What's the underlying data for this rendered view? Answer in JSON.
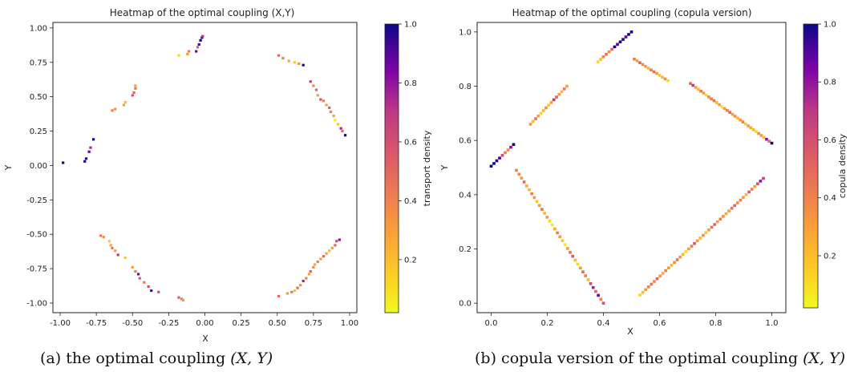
{
  "captions": {
    "a": {
      "label": "(a)",
      "text": "the optimal coupling",
      "math": "(X, Y)"
    },
    "b": {
      "label": "(b)",
      "text": "copula version of the optimal coupling",
      "math": "(X, Y)"
    }
  },
  "colormap": "plasma (reversed)",
  "chart_data": [
    {
      "type": "heatmap",
      "title": "Heatmap of the optimal coupling (X,Y)",
      "xlabel": "X",
      "ylabel": "Y",
      "xlim": [
        -1.05,
        1.05
      ],
      "ylim": [
        -1.07,
        1.04
      ],
      "xticks": [
        -1.0,
        -0.75,
        -0.5,
        -0.25,
        0.0,
        0.25,
        0.5,
        0.75,
        1.0
      ],
      "yticks": [
        -1.0,
        -0.75,
        -0.5,
        -0.25,
        0.0,
        0.25,
        0.5,
        0.75,
        1.0
      ],
      "colorbar": {
        "label": "transport density",
        "ticks": [
          0.2,
          0.4,
          0.6,
          0.8,
          1.0
        ],
        "range": [
          0.02,
          1.0
        ]
      },
      "cell_size": 0.018,
      "points": [
        [
          -0.98,
          0.02,
          1.0
        ],
        [
          -0.83,
          0.03,
          1.0
        ],
        [
          -0.82,
          0.05,
          0.95
        ],
        [
          -0.8,
          0.1,
          0.9
        ],
        [
          -0.79,
          0.13,
          0.75
        ],
        [
          -0.77,
          0.19,
          1.0
        ],
        [
          -0.64,
          0.4,
          0.4
        ],
        [
          -0.62,
          0.41,
          0.35
        ],
        [
          -0.56,
          0.44,
          0.3
        ],
        [
          -0.55,
          0.46,
          0.2
        ],
        [
          -0.5,
          0.51,
          0.6
        ],
        [
          -0.49,
          0.53,
          0.5
        ],
        [
          -0.48,
          0.56,
          0.45
        ],
        [
          -0.48,
          0.58,
          0.3
        ],
        [
          -0.18,
          0.8,
          0.1
        ],
        [
          -0.12,
          0.81,
          0.3
        ],
        [
          -0.11,
          0.83,
          0.4
        ],
        [
          -0.06,
          0.83,
          0.85
        ],
        [
          -0.05,
          0.86,
          0.55
        ],
        [
          -0.04,
          0.88,
          0.9
        ],
        [
          -0.03,
          0.91,
          1.0
        ],
        [
          -0.02,
          0.93,
          0.95
        ],
        [
          -0.015,
          0.94,
          0.7
        ],
        [
          0.51,
          0.8,
          0.5
        ],
        [
          0.54,
          0.78,
          0.4
        ],
        [
          0.58,
          0.76,
          0.3
        ],
        [
          0.62,
          0.75,
          0.15
        ],
        [
          0.65,
          0.74,
          0.35
        ],
        [
          0.68,
          0.73,
          1.0
        ],
        [
          0.73,
          0.61,
          0.7
        ],
        [
          0.75,
          0.58,
          0.35
        ],
        [
          0.77,
          0.55,
          0.5
        ],
        [
          0.78,
          0.51,
          0.3
        ],
        [
          0.8,
          0.48,
          0.6
        ],
        [
          0.82,
          0.47,
          0.4
        ],
        [
          0.84,
          0.44,
          0.3
        ],
        [
          0.86,
          0.42,
          0.55
        ],
        [
          0.87,
          0.39,
          0.4
        ],
        [
          0.89,
          0.36,
          0.3
        ],
        [
          0.9,
          0.33,
          0.05
        ],
        [
          0.92,
          0.3,
          0.2
        ],
        [
          0.94,
          0.27,
          0.75
        ],
        [
          0.95,
          0.25,
          0.5
        ],
        [
          0.97,
          0.22,
          1.0
        ],
        [
          -0.72,
          -0.51,
          0.4
        ],
        [
          -0.7,
          -0.52,
          0.35
        ],
        [
          -0.66,
          -0.55,
          0.15
        ],
        [
          -0.65,
          -0.58,
          0.25
        ],
        [
          -0.64,
          -0.6,
          0.45
        ],
        [
          -0.62,
          -0.62,
          0.3
        ],
        [
          -0.6,
          -0.65,
          0.7
        ],
        [
          -0.55,
          -0.67,
          0.15
        ],
        [
          -0.5,
          -0.74,
          0.3
        ],
        [
          -0.48,
          -0.77,
          0.4
        ],
        [
          -0.46,
          -0.79,
          0.85
        ],
        [
          -0.45,
          -0.82,
          0.55
        ],
        [
          -0.42,
          -0.85,
          0.4
        ],
        [
          -0.39,
          -0.88,
          0.6
        ],
        [
          -0.37,
          -0.91,
          0.9
        ],
        [
          -0.32,
          -0.92,
          0.6
        ],
        [
          -0.18,
          -0.96,
          0.55
        ],
        [
          -0.16,
          -0.97,
          0.4
        ],
        [
          -0.15,
          -0.98,
          0.3
        ],
        [
          0.51,
          -0.95,
          0.5
        ],
        [
          0.57,
          -0.93,
          0.3
        ],
        [
          0.6,
          -0.92,
          0.45
        ],
        [
          0.62,
          -0.91,
          0.2
        ],
        [
          0.64,
          -0.89,
          0.5
        ],
        [
          0.66,
          -0.87,
          0.35
        ],
        [
          0.68,
          -0.84,
          0.75
        ],
        [
          0.7,
          -0.82,
          0.4
        ],
        [
          0.72,
          -0.79,
          0.3
        ],
        [
          0.73,
          -0.77,
          0.5
        ],
        [
          0.75,
          -0.74,
          0.35
        ],
        [
          0.76,
          -0.72,
          0.25
        ],
        [
          0.78,
          -0.7,
          0.4
        ],
        [
          0.8,
          -0.68,
          0.3
        ],
        [
          0.82,
          -0.66,
          0.5
        ],
        [
          0.84,
          -0.64,
          0.3
        ],
        [
          0.86,
          -0.62,
          0.2
        ],
        [
          0.88,
          -0.6,
          0.3
        ],
        [
          0.9,
          -0.58,
          0.5
        ],
        [
          0.91,
          -0.55,
          0.6
        ],
        [
          0.93,
          -0.54,
          0.8
        ]
      ]
    },
    {
      "type": "heatmap",
      "title": "Heatmap of the optimal coupling (copula version)",
      "xlabel": "X",
      "ylabel": "Y",
      "xlim": [
        -0.05,
        1.05
      ],
      "ylim": [
        -0.035,
        1.035
      ],
      "xticks": [
        0.0,
        0.2,
        0.4,
        0.6,
        0.8,
        1.0
      ],
      "yticks": [
        0.0,
        0.2,
        0.4,
        0.6,
        0.8,
        1.0
      ],
      "colorbar": {
        "label": "copula density",
        "ticks": [
          0.2,
          0.4,
          0.6,
          0.8,
          1.0
        ],
        "range": [
          0.02,
          1.0
        ]
      },
      "cell_size": 0.0105,
      "segments": [
        {
          "from": [
            0.0,
            0.505
          ],
          "to": [
            0.08,
            0.585
          ],
          "n": 9,
          "values": [
            1.0,
            1.0,
            0.95,
            0.9,
            0.6,
            0.4,
            0.35,
            0.8,
            1.0
          ]
        },
        {
          "from": [
            0.09,
            0.49
          ],
          "to": [
            0.4,
            0.0
          ],
          "n": 35,
          "values": [
            0.4,
            0.35,
            0.3,
            0.5,
            0.25,
            0.2,
            0.4,
            0.3,
            0.15,
            0.3,
            0.45,
            0.2,
            0.3,
            0.1,
            0.05,
            0.25,
            0.4,
            0.3,
            0.15,
            0.05,
            0.3,
            0.45,
            0.55,
            0.2,
            0.1,
            0.3,
            0.5,
            0.4,
            0.2,
            0.6,
            0.75,
            0.5,
            0.85,
            0.4,
            0.6
          ]
        },
        {
          "from": [
            0.14,
            0.66
          ],
          "to": [
            0.27,
            0.8
          ],
          "n": 15,
          "values": [
            0.3,
            0.2,
            0.45,
            0.3,
            0.1,
            0.2,
            0.35,
            0.15,
            0.3,
            0.7,
            0.5,
            0.3,
            0.2,
            0.4,
            0.3
          ]
        },
        {
          "from": [
            0.38,
            0.89
          ],
          "to": [
            0.5,
            1.0
          ],
          "n": 13,
          "values": [
            0.1,
            0.2,
            0.4,
            0.45,
            0.35,
            0.5,
            1.0,
            0.9,
            1.0,
            0.95,
            0.9,
            1.0,
            1.0
          ]
        },
        {
          "from": [
            0.51,
            0.9
          ],
          "to": [
            0.63,
            0.82
          ],
          "n": 13,
          "values": [
            0.4,
            0.3,
            0.5,
            0.35,
            0.3,
            0.2,
            0.4,
            0.45,
            0.3,
            0.15,
            0.2,
            0.35,
            0.1
          ]
        },
        {
          "from": [
            0.71,
            0.81
          ],
          "to": [
            1.0,
            0.59
          ],
          "n": 32,
          "values": [
            0.5,
            0.7,
            0.3,
            0.2,
            0.4,
            0.3,
            0.1,
            0.35,
            0.4,
            0.45,
            0.2,
            0.3,
            0.05,
            0.3,
            0.4,
            0.5,
            0.3,
            0.35,
            0.2,
            0.3,
            0.4,
            0.15,
            0.3,
            0.25,
            0.2,
            0.1,
            0.35,
            0.3,
            0.2,
            0.8,
            0.5,
            1.0
          ]
        },
        {
          "from": [
            0.53,
            0.03
          ],
          "to": [
            0.97,
            0.46
          ],
          "n": 44,
          "values": [
            0.1,
            0.2,
            0.3,
            0.4,
            0.45,
            0.35,
            0.5,
            0.3,
            0.25,
            0.4,
            0.3,
            0.2,
            0.35,
            0.45,
            0.3,
            0.2,
            0.1,
            0.3,
            0.4,
            0.55,
            0.3,
            0.2,
            0.35,
            0.15,
            0.3,
            0.45,
            0.5,
            0.3,
            0.4,
            0.35,
            0.25,
            0.3,
            0.45,
            0.5,
            0.35,
            0.4,
            0.3,
            0.2,
            0.55,
            0.4,
            0.3,
            0.6,
            0.8,
            0.65
          ]
        }
      ]
    }
  ]
}
